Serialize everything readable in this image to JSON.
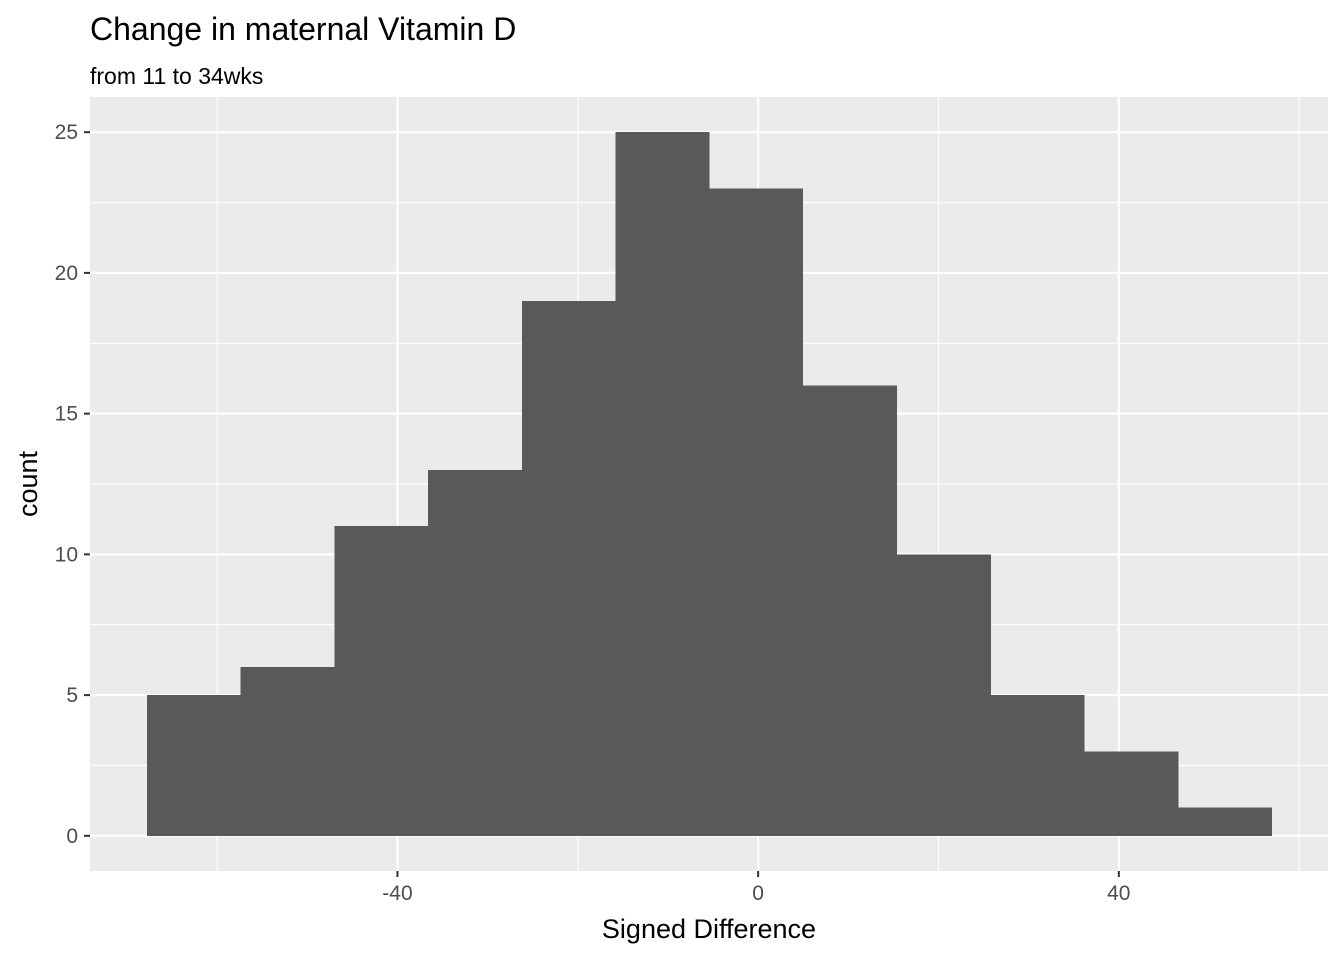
{
  "chart_data": {
    "type": "histogram",
    "title": "Change in maternal Vitamin D",
    "subtitle": "from 11 to 34wks",
    "xlabel": "Signed Difference",
    "ylabel": "count",
    "bins": [
      {
        "x0": -67.8,
        "x1": -57.4,
        "count": 5
      },
      {
        "x0": -57.4,
        "x1": -47.0,
        "count": 6
      },
      {
        "x0": -47.0,
        "x1": -36.6,
        "count": 11
      },
      {
        "x0": -36.6,
        "x1": -26.2,
        "count": 13
      },
      {
        "x0": -26.2,
        "x1": -15.8,
        "count": 19
      },
      {
        "x0": -15.8,
        "x1": -5.4,
        "count": 25
      },
      {
        "x0": -5.4,
        "x1": 5.0,
        "count": 23
      },
      {
        "x0": 5.0,
        "x1": 15.4,
        "count": 16
      },
      {
        "x0": 15.4,
        "x1": 25.8,
        "count": 10
      },
      {
        "x0": 25.8,
        "x1": 36.2,
        "count": 5
      },
      {
        "x0": 36.2,
        "x1": 46.6,
        "count": 3
      },
      {
        "x0": 46.6,
        "x1": 57.0,
        "count": 1
      }
    ],
    "xlim": [
      -74.1,
      63.2
    ],
    "ylim": [
      -1.25,
      26.25
    ],
    "x_major_ticks": [
      -40,
      0,
      40
    ],
    "x_tick_labels": [
      "-40",
      "0",
      "40"
    ],
    "x_minor_ticks": [
      -60,
      -20,
      20,
      60
    ],
    "y_major_ticks": [
      0,
      5,
      10,
      15,
      20,
      25
    ],
    "y_tick_labels": [
      "0",
      "5",
      "10",
      "15",
      "20",
      "25"
    ],
    "y_minor_ticks": [
      2.5,
      7.5,
      12.5,
      17.5,
      22.5
    ],
    "grid": true,
    "colors": {
      "panel_background": "#EBEBEB",
      "grid": "#FFFFFF",
      "bar_fill": "#595959",
      "tick_text": "#4D4D4D",
      "tick_mark": "#333333"
    }
  }
}
